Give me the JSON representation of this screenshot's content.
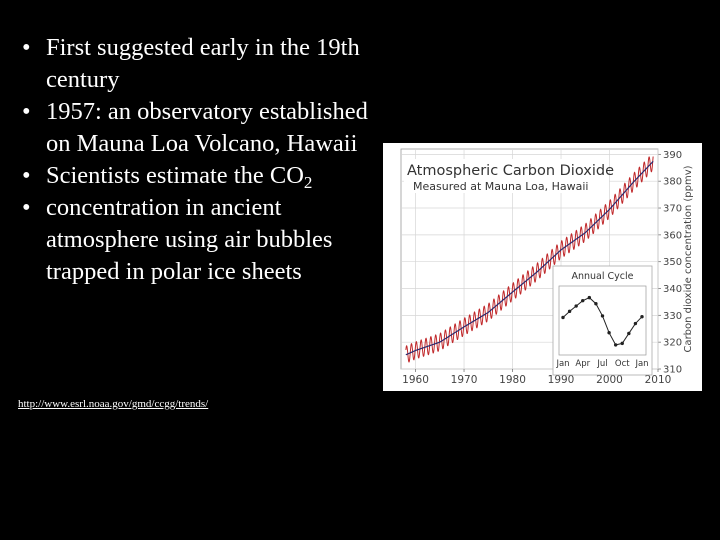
{
  "bullets": [
    {
      "text": "First suggested early in the 19th century"
    },
    {
      "text": "1957: an observatory established on Mauna Loa Volcano, Hawaii"
    },
    {
      "text_main": "Scientists estimate the CO",
      "subscript": "2"
    },
    {
      "text": "concentration in ancient atmosphere using air bubbles trapped in polar ice sheets"
    }
  ],
  "bullet_symbol": "•",
  "source_url": "http://www.esrl.noaa.gov/gmd/ccgg/trends/",
  "chart_data": {
    "type": "line",
    "title": "Atmospheric Carbon Dioxide",
    "subtitle": "Measured at Mauna Loa, Hawaii",
    "ylabel": "Carbon dioxide concentration (ppmv)",
    "xlabel": "",
    "x_ticks": [
      "1960",
      "1970",
      "1980",
      "1990",
      "2000",
      "2010"
    ],
    "y_ticks": [
      "310",
      "320",
      "330",
      "340",
      "350",
      "360",
      "370",
      "380",
      "390"
    ],
    "xlim": [
      1957,
      2010
    ],
    "ylim": [
      310,
      392
    ],
    "y_axis_side": "right",
    "grid": true,
    "series": [
      {
        "color": "#c0282a",
        "x": [
          1958,
          1960,
          1965,
          1970,
          1975,
          1980,
          1985,
          1990,
          1995,
          2000,
          2005,
          2009
        ],
        "values": [
          315.3,
          316.9,
          320.0,
          325.7,
          331.1,
          338.7,
          346.1,
          354.4,
          360.8,
          369.5,
          379.8,
          387.4
        ]
      },
      {
        "color": "#2a2a6e",
        "x": [
          1958,
          1960,
          1965,
          1970,
          1975,
          1980,
          1985,
          1990,
          1995,
          2000,
          2005,
          2009
        ],
        "values": [
          315.3,
          316.9,
          320.0,
          325.7,
          331.1,
          338.7,
          346.1,
          354.4,
          360.8,
          369.5,
          379.8,
          387.4
        ]
      }
    ],
    "seasonal_amplitude_ppmv": 3.2,
    "inset": {
      "title": "Annual Cycle",
      "x_ticks": [
        "Jan",
        "Apr",
        "Jul",
        "Oct",
        "Jan"
      ],
      "months": [
        1,
        2,
        3,
        4,
        5,
        6,
        7,
        8,
        9,
        10,
        11,
        12,
        13
      ],
      "values": [
        0.4,
        1.2,
        1.9,
        2.6,
        3.0,
        2.2,
        0.6,
        -1.6,
        -3.2,
        -3.0,
        -1.7,
        -0.4,
        0.5
      ],
      "ylim": [
        -4,
        4
      ]
    }
  }
}
